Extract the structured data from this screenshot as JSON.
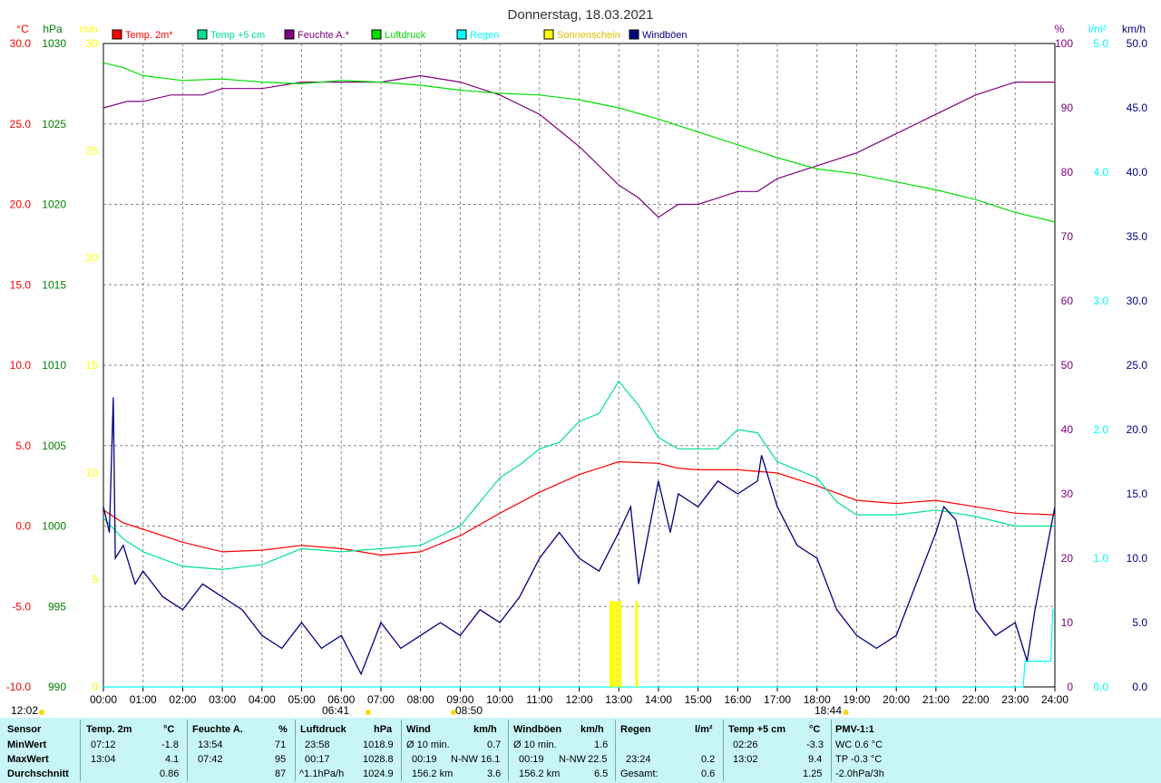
{
  "chart_data": {
    "type": "line",
    "title": "Donnerstag, 18.03.2021",
    "x_ticks": [
      "00:00",
      "01:00",
      "02:00",
      "03:00",
      "04:00",
      "05:00",
      "06:00",
      "07:00",
      "08:00",
      "09:00",
      "10:00",
      "11:00",
      "12:00",
      "13:00",
      "14:00",
      "15:00",
      "16:00",
      "17:00",
      "18:00",
      "19:00",
      "20:00",
      "21:00",
      "22:00",
      "23:00",
      "24:00"
    ],
    "axes": {
      "temp_c": {
        "label": "°C",
        "color": "#ff0000",
        "range": [
          -10,
          30
        ],
        "ticks": [
          "30.0",
          "25.0",
          "20.0",
          "15.0",
          "10.0",
          "5.0",
          "0.0",
          "-5.0",
          "-10.0"
        ]
      },
      "pressure_hpa": {
        "label": "hPa",
        "color": "#008000",
        "range": [
          990,
          1030
        ],
        "ticks": [
          "1030",
          "1025",
          "1020",
          "1015",
          "1010",
          "1005",
          "1000",
          "995",
          "990"
        ]
      },
      "sunshine_min": {
        "label": "min",
        "color": "#ffff00",
        "range": [
          0,
          30
        ],
        "ticks": [
          "30",
          "25",
          "20",
          "15",
          "10",
          "5",
          "0"
        ]
      },
      "humidity_pct": {
        "label": "%",
        "color": "#800080",
        "range": [
          0,
          100
        ],
        "ticks": [
          "100",
          "90",
          "80",
          "70",
          "60",
          "50",
          "40",
          "30",
          "20",
          "10",
          "0"
        ]
      },
      "rain_lm2": {
        "label": "l/m²",
        "color": "#00ffff",
        "range": [
          0,
          5
        ],
        "ticks": [
          "5.0",
          "4.0",
          "3.0",
          "2.0",
          "1.0",
          "0.0"
        ]
      },
      "wind_kmh": {
        "label": "km/h",
        "color": "#000080",
        "range": [
          0,
          50
        ],
        "ticks": [
          "50.0",
          "45.0",
          "40.0",
          "35.0",
          "30.0",
          "25.0",
          "20.0",
          "15.0",
          "10.0",
          "5.0",
          "0.0"
        ]
      }
    },
    "legend": [
      {
        "name": "Temp. 2m*",
        "color": "#ff0000"
      },
      {
        "name": "Temp +5 cm",
        "color": "#00e090"
      },
      {
        "name": "Feuchte A.*",
        "color": "#800080"
      },
      {
        "name": "Luftdruck",
        "color": "#00e000"
      },
      {
        "name": "Regen",
        "color": "#00ffff"
      },
      {
        "name": "Sonnenschein",
        "color": "#ffff00"
      },
      {
        "name": "Windböen",
        "color": "#000080"
      }
    ],
    "series": [
      {
        "name": "Temp. 2m*",
        "axis": "temp_c",
        "x": [
          0,
          0.5,
          1,
          2,
          3,
          4,
          5,
          6,
          7,
          8,
          9,
          10,
          11,
          12,
          12.5,
          13,
          14,
          14.5,
          15,
          16,
          17,
          18,
          19,
          20,
          21,
          22,
          23,
          24
        ],
        "values": [
          1.0,
          0.2,
          -0.2,
          -1.0,
          -1.6,
          -1.5,
          -1.2,
          -1.4,
          -1.8,
          -1.6,
          -0.6,
          0.8,
          2.1,
          3.2,
          3.6,
          4.0,
          3.9,
          3.6,
          3.5,
          3.5,
          3.3,
          2.5,
          1.6,
          1.4,
          1.6,
          1.2,
          0.8,
          0.7
        ]
      },
      {
        "name": "Temp +5 cm",
        "axis": "temp_c",
        "x": [
          0,
          0.5,
          1,
          2,
          3,
          4,
          5,
          6,
          7,
          8,
          9,
          9.5,
          10,
          10.5,
          11,
          11.5,
          12,
          12.5,
          13,
          13.5,
          14,
          14.5,
          15,
          15.5,
          16,
          16.5,
          17,
          17.5,
          18,
          18.5,
          19,
          20,
          21,
          22,
          23,
          24
        ],
        "values": [
          0.5,
          -0.8,
          -1.6,
          -2.5,
          -2.7,
          -2.4,
          -1.4,
          -1.6,
          -1.4,
          -1.2,
          0.0,
          1.5,
          3.0,
          3.8,
          4.8,
          5.2,
          6.5,
          7.0,
          9.0,
          7.5,
          5.5,
          4.8,
          4.8,
          4.8,
          6.0,
          5.8,
          4.0,
          3.5,
          3.0,
          1.5,
          0.7,
          0.7,
          1.0,
          0.6,
          0.0,
          0.0
        ]
      },
      {
        "name": "Feuchte A.*",
        "axis": "humidity_pct",
        "x": [
          0,
          0.6,
          1,
          1.7,
          2.5,
          3,
          4,
          5,
          6,
          7,
          8,
          9,
          9.5,
          10,
          11,
          12,
          13,
          13.5,
          14,
          14.5,
          15,
          15.5,
          16,
          16.5,
          17,
          18,
          19,
          20,
          21,
          22,
          23,
          24
        ],
        "values": [
          90,
          91,
          91,
          92,
          92,
          93,
          93,
          94,
          94,
          94,
          95,
          94,
          93,
          92,
          89,
          84,
          78,
          76,
          73,
          75,
          75,
          76,
          77,
          77,
          79,
          81,
          83,
          86,
          89,
          92,
          94,
          94
        ]
      },
      {
        "name": "Luftdruck",
        "axis": "pressure_hpa",
        "x": [
          0,
          0.5,
          1,
          2,
          3,
          4,
          5,
          6,
          7,
          8,
          9,
          10,
          11,
          12,
          13,
          14,
          15,
          16,
          17,
          18,
          19,
          20,
          21,
          22,
          23,
          24
        ],
        "values": [
          1028.8,
          1028.5,
          1028.0,
          1027.7,
          1027.8,
          1027.6,
          1027.5,
          1027.7,
          1027.6,
          1027.4,
          1027.1,
          1026.9,
          1026.8,
          1026.5,
          1026.0,
          1025.3,
          1024.5,
          1023.7,
          1022.9,
          1022.2,
          1021.9,
          1021.4,
          1020.9,
          1020.3,
          1019.5,
          1018.9
        ]
      },
      {
        "name": "Regen",
        "axis": "rain_lm2",
        "x": [
          0,
          23.2,
          23.25,
          23.4,
          23.9,
          23.95,
          24
        ],
        "values": [
          0,
          0,
          0.2,
          0.2,
          0.2,
          0.6,
          0.6
        ]
      },
      {
        "name": "Sonnenschein",
        "axis": "sunshine_min",
        "bars": [
          {
            "x": 12.8,
            "value": 4
          },
          {
            "x": 12.87,
            "value": 4
          },
          {
            "x": 12.95,
            "value": 4
          },
          {
            "x": 13.03,
            "value": 4
          },
          {
            "x": 13.45,
            "value": 4
          }
        ]
      },
      {
        "name": "Windböen",
        "axis": "wind_kmh",
        "x": [
          0,
          0.15,
          0.25,
          0.3,
          0.5,
          0.8,
          1,
          1.5,
          2,
          2.5,
          3,
          3.5,
          4,
          4.5,
          5,
          5.5,
          6,
          6.5,
          7,
          7.5,
          8,
          8.5,
          9,
          9.5,
          10,
          10.5,
          11,
          11.5,
          12,
          12.5,
          13,
          13.3,
          13.5,
          14,
          14.3,
          14.5,
          15,
          15.5,
          16,
          16.5,
          16.6,
          17,
          17.5,
          18,
          18.5,
          19,
          19.5,
          20,
          20.5,
          21,
          21.2,
          21.5,
          22,
          22.5,
          23,
          23.3,
          23.5,
          24
        ],
        "values": [
          14,
          12,
          22.5,
          10,
          11,
          8,
          9,
          7,
          6,
          8,
          7,
          6,
          4,
          3,
          5,
          3,
          4,
          1,
          5,
          3,
          4,
          5,
          4,
          6,
          5,
          7,
          10,
          12,
          10,
          9,
          12,
          14,
          8,
          16,
          12,
          15,
          14,
          16,
          15,
          16,
          18,
          14,
          11,
          10,
          6,
          4,
          3,
          4,
          8,
          12,
          14,
          13,
          6,
          4,
          5,
          2,
          6,
          14
        ]
      }
    ],
    "annotations": [
      "06:41",
      "08:50",
      "18:44",
      "12:02"
    ]
  },
  "table": {
    "headers": [
      {
        "name": "Sensor",
        "unit": ""
      },
      {
        "name": "Temp. 2m",
        "unit": "°C"
      },
      {
        "name": "Feuchte A.",
        "unit": "%"
      },
      {
        "name": "Luftdruck",
        "unit": "hPa"
      },
      {
        "name": "Wind",
        "unit": "km/h"
      },
      {
        "name": "Windböen",
        "unit": "km/h"
      },
      {
        "name": "Regen",
        "unit": "l/m²"
      },
      {
        "name": "Temp +5 cm",
        "unit": "°C"
      },
      {
        "name": "PMV-1:1",
        "unit": ""
      }
    ],
    "row_labels": [
      "MinWert",
      "MaxWert",
      "Durchschnitt"
    ],
    "temp2m": {
      "min_time": "07:12",
      "min": "-1.8",
      "max_time": "13:04",
      "max": "4.1",
      "avg": "0.86"
    },
    "feuchte": {
      "min_time": "13:54",
      "min": "71",
      "max_time": "07:42",
      "max": "95",
      "avg": "87"
    },
    "luftdruck": {
      "min_time": "23:58",
      "min": "1018.9",
      "max_time": "00:17",
      "max": "1028.8",
      "trend": "^1.1hPa/h",
      "avg": "1024.9"
    },
    "wind": {
      "avg_label": "Ø 10 min.",
      "avg10": "0.7",
      "max_time": "00:19",
      "max_dir": "N-NW",
      "max": "16.1",
      "dist": "156.2 km",
      "avg": "3.6"
    },
    "boeen": {
      "avg_label": "Ø 10 min.",
      "avg10": "1.6",
      "max_time": "00:19",
      "max_dir": "N-NW",
      "max": "22.5",
      "dist": "156.2 km",
      "avg": "6.5"
    },
    "regen": {
      "max_time": "23:24",
      "max": "0.2",
      "total_label": "Gesamt:",
      "total": "0.6"
    },
    "temp5": {
      "min_time": "02:26",
      "min": "-3.3",
      "max_time": "13:02",
      "max": "9.4",
      "avg": "1.25"
    },
    "pmv": {
      "wc": "WC 0.6 °C",
      "tp": "TP -0.3 °C",
      "trend": "-2.0hPa/3h"
    }
  }
}
